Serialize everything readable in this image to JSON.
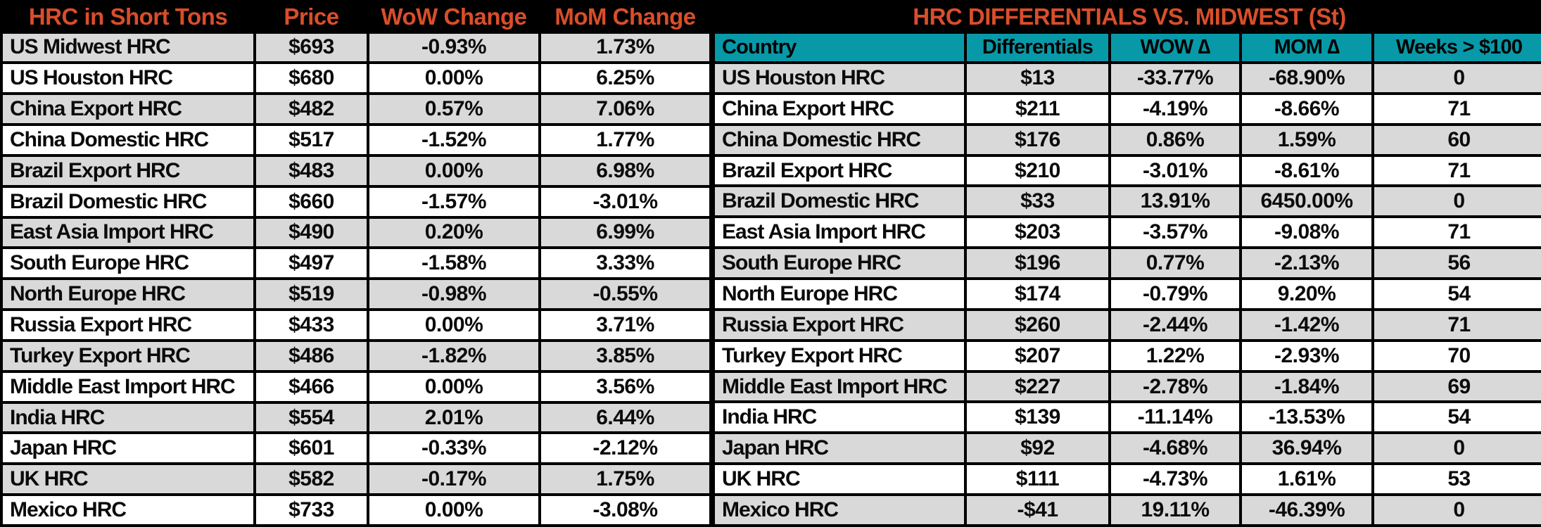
{
  "colors": {
    "accent_orange": "#D94E2A",
    "header_black": "#000000",
    "teal_header": "#0899A8",
    "row_alt_gray": "#D9D9D9",
    "row_white": "#FFFFFF"
  },
  "chart_data": [
    {
      "type": "table",
      "title": "HRC in Short Tons",
      "header": [
        "HRC in Short Tons",
        "Price",
        "WoW Change",
        "MoM Change"
      ],
      "rows": [
        [
          "US Midwest HRC",
          "$693",
          "-0.93%",
          "1.73%"
        ],
        [
          "US Houston HRC",
          "$680",
          "0.00%",
          "6.25%"
        ],
        [
          "China Export HRC",
          "$482",
          "0.57%",
          "7.06%"
        ],
        [
          "China Domestic HRC",
          "$517",
          "-1.52%",
          "1.77%"
        ],
        [
          "Brazil Export HRC",
          "$483",
          "0.00%",
          "6.98%"
        ],
        [
          "Brazil Domestic HRC",
          "$660",
          "-1.57%",
          "-3.01%"
        ],
        [
          "East Asia Import HRC",
          "$490",
          "0.20%",
          "6.99%"
        ],
        [
          "South Europe HRC",
          "$497",
          "-1.58%",
          "3.33%"
        ],
        [
          "North Europe HRC",
          "$519",
          "-0.98%",
          "-0.55%"
        ],
        [
          "Russia Export HRC",
          "$433",
          "0.00%",
          "3.71%"
        ],
        [
          "Turkey Export HRC",
          "$486",
          "-1.82%",
          "3.85%"
        ],
        [
          "Middle East Import HRC",
          "$466",
          "0.00%",
          "3.56%"
        ],
        [
          "India HRC",
          "$554",
          "2.01%",
          "6.44%"
        ],
        [
          "Japan HRC",
          "$601",
          "-0.33%",
          "-2.12%"
        ],
        [
          "UK HRC",
          "$582",
          "-0.17%",
          "1.75%"
        ],
        [
          "Mexico HRC",
          "$733",
          "0.00%",
          "-3.08%"
        ]
      ]
    },
    {
      "type": "table",
      "title": "HRC DIFFERENTIALS VS. MIDWEST (St)",
      "header": [
        "Country",
        "Differentials",
        "WOW ∆",
        "MOM ∆",
        "Weeks > $100"
      ],
      "rows": [
        [
          "US Houston HRC",
          "$13",
          "-33.77%",
          "-68.90%",
          "0"
        ],
        [
          "China Export HRC",
          "$211",
          "-4.19%",
          "-8.66%",
          "71"
        ],
        [
          "China Domestic HRC",
          "$176",
          "0.86%",
          "1.59%",
          "60"
        ],
        [
          "Brazil Export HRC",
          "$210",
          "-3.01%",
          "-8.61%",
          "71"
        ],
        [
          "Brazil Domestic HRC",
          "$33",
          "13.91%",
          "6450.00%",
          "0"
        ],
        [
          "East Asia Import HRC",
          "$203",
          "-3.57%",
          "-9.08%",
          "71"
        ],
        [
          "South Europe HRC",
          "$196",
          "0.77%",
          "-2.13%",
          "56"
        ],
        [
          "North Europe HRC",
          "$174",
          "-0.79%",
          "9.20%",
          "54"
        ],
        [
          "Russia Export HRC",
          "$260",
          "-2.44%",
          "-1.42%",
          "71"
        ],
        [
          "Turkey Export HRC",
          "$207",
          "1.22%",
          "-2.93%",
          "70"
        ],
        [
          "Middle East Import HRC",
          "$227",
          "-2.78%",
          "-1.84%",
          "69"
        ],
        [
          "India HRC",
          "$139",
          "-11.14%",
          "-13.53%",
          "54"
        ],
        [
          "Japan HRC",
          "$92",
          "-4.68%",
          "36.94%",
          "0"
        ],
        [
          "UK HRC",
          "$111",
          "-4.73%",
          "1.61%",
          "53"
        ],
        [
          "Mexico HRC",
          "-$41",
          "19.11%",
          "-46.39%",
          "0"
        ]
      ]
    }
  ]
}
